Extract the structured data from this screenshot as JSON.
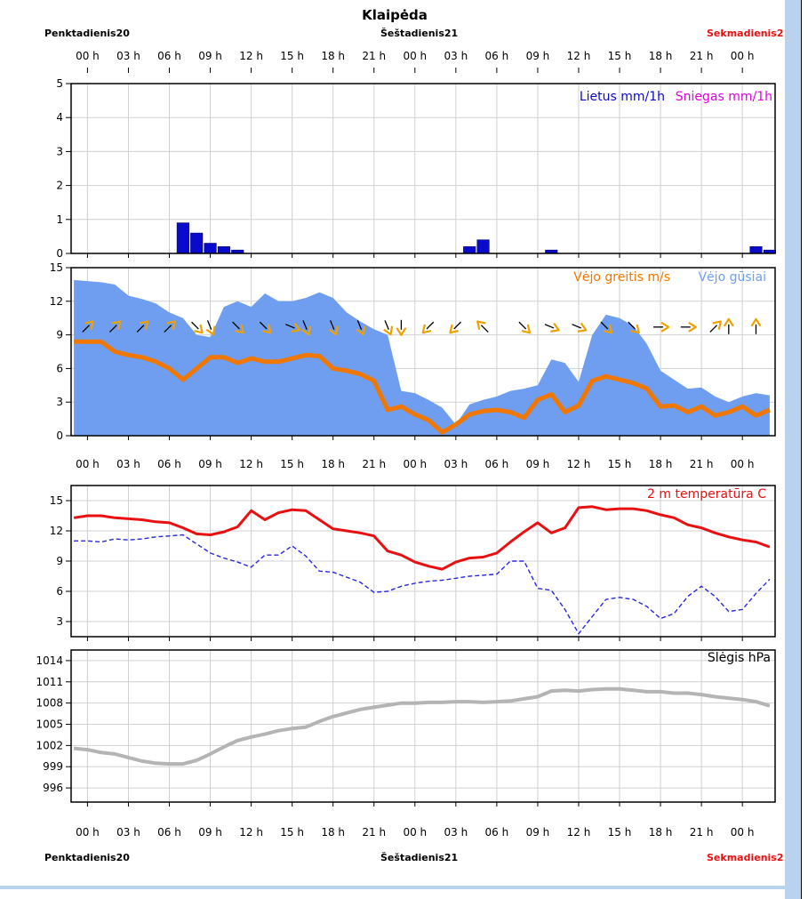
{
  "header": {
    "city": "Klaipėda",
    "day_left": "Penktadienis20",
    "day_mid": "Šeštadienis21",
    "day_right": "Sekmadienis2"
  },
  "colors": {
    "rain": "#0a0acd",
    "snow": "#e000e0",
    "wind": "#f07800",
    "gust": "#6f9ef0",
    "arrow": "#f0a000",
    "temp": "#e81010",
    "dew": "#2828e0",
    "pressure": "#b4b4b4",
    "weekend": "#e81010"
  },
  "hour_labels": [
    "00 h",
    "03 h",
    "06 h",
    "09 h",
    "12 h",
    "15 h",
    "18 h",
    "21 h",
    "00 h",
    "03 h",
    "06 h",
    "09 h",
    "12 h",
    "15 h",
    "18 h",
    "21 h",
    "00 h"
  ],
  "chart_data": [
    {
      "type": "bar",
      "x_start_hour": 0,
      "legend": [
        "Lietus mm/1h",
        "Sniegas mm/1h"
      ],
      "ylim": [
        0,
        5
      ],
      "yticks": [
        0,
        1,
        2,
        3,
        4,
        5
      ],
      "rain": [
        {
          "h": 7,
          "v": 0.9
        },
        {
          "h": 8,
          "v": 0.6
        },
        {
          "h": 9,
          "v": 0.3
        },
        {
          "h": 10,
          "v": 0.2
        },
        {
          "h": 11,
          "v": 0.1
        },
        {
          "h": 28,
          "v": 0.2
        },
        {
          "h": 29,
          "v": 0.4
        },
        {
          "h": 34,
          "v": 0.1
        },
        {
          "h": 49,
          "v": 0.2
        },
        {
          "h": 50,
          "v": 0.1
        }
      ],
      "snow": []
    },
    {
      "type": "area",
      "legend": [
        "Vėjo greitis m/s",
        "Vėjo gūsiai"
      ],
      "ylim": [
        0,
        15
      ],
      "yticks": [
        0,
        3,
        6,
        9,
        12,
        15
      ],
      "x": [
        -1,
        0,
        1,
        2,
        3,
        4,
        5,
        6,
        7,
        8,
        9,
        10,
        11,
        12,
        13,
        14,
        15,
        16,
        17,
        18,
        19,
        20,
        21,
        22,
        23,
        24,
        25,
        26,
        27,
        28,
        29,
        30,
        31,
        32,
        33,
        34,
        35,
        36,
        37,
        38,
        39,
        40,
        41,
        42,
        43,
        44,
        45,
        46,
        47,
        48,
        49,
        50
      ],
      "gusts": [
        13.9,
        13.8,
        13.7,
        13.5,
        12.5,
        12.2,
        11.8,
        11.0,
        10.5,
        9.0,
        8.8,
        11.5,
        12.0,
        11.5,
        12.7,
        12.0,
        12.0,
        12.3,
        12.8,
        12.3,
        11.0,
        10.2,
        9.5,
        9.0,
        4.0,
        3.8,
        3.2,
        2.5,
        1.0,
        2.8,
        3.2,
        3.5,
        4.0,
        4.2,
        4.5,
        6.8,
        6.5,
        4.8,
        9.0,
        10.8,
        10.5,
        9.8,
        8.2,
        5.8,
        5.0,
        4.2,
        4.3,
        3.5,
        3.0,
        3.5,
        3.8,
        3.6
      ],
      "speed": [
        8.4,
        8.4,
        8.4,
        7.5,
        7.2,
        7.0,
        6.6,
        6.0,
        5.0,
        6.0,
        7.0,
        7.0,
        6.5,
        6.9,
        6.6,
        6.6,
        6.9,
        7.2,
        7.1,
        6.0,
        5.8,
        5.5,
        4.9,
        2.3,
        2.6,
        1.9,
        1.4,
        0.3,
        1.0,
        1.9,
        2.2,
        2.3,
        2.1,
        1.6,
        3.2,
        3.7,
        2.1,
        2.7,
        4.9,
        5.3,
        5.0,
        4.7,
        4.2,
        2.6,
        2.7,
        2.1,
        2.6,
        1.8,
        2.1,
        2.6,
        1.8,
        2.3
      ],
      "arrows": [
        {
          "h": 0,
          "dir": "NE"
        },
        {
          "h": 2,
          "dir": "NE"
        },
        {
          "h": 4,
          "dir": "NE"
        },
        {
          "h": 6,
          "dir": "NE"
        },
        {
          "h": 8,
          "dir": "SE"
        },
        {
          "h": 9,
          "dir": "SSE"
        },
        {
          "h": 11,
          "dir": "SE"
        },
        {
          "h": 13,
          "dir": "SE"
        },
        {
          "h": 15,
          "dir": "ESE"
        },
        {
          "h": 16,
          "dir": "SSE"
        },
        {
          "h": 18,
          "dir": "SSE"
        },
        {
          "h": 20,
          "dir": "SSE"
        },
        {
          "h": 22,
          "dir": "SSE"
        },
        {
          "h": 23,
          "dir": "S"
        },
        {
          "h": 25,
          "dir": "SW"
        },
        {
          "h": 27,
          "dir": "SW"
        },
        {
          "h": 29,
          "dir": "NW"
        },
        {
          "h": 32,
          "dir": "SE"
        },
        {
          "h": 34,
          "dir": "ESE"
        },
        {
          "h": 36,
          "dir": "ESE"
        },
        {
          "h": 38,
          "dir": "SE"
        },
        {
          "h": 40,
          "dir": "SE"
        },
        {
          "h": 42,
          "dir": "E"
        },
        {
          "h": 44,
          "dir": "E"
        },
        {
          "h": 46,
          "dir": "NE"
        },
        {
          "h": 47,
          "dir": "N"
        },
        {
          "h": 49,
          "dir": "N"
        }
      ]
    },
    {
      "type": "line",
      "legend": [
        "2 m temperatūra C"
      ],
      "ylim": [
        1.5,
        16.5
      ],
      "yticks": [
        3,
        6,
        9,
        12,
        15
      ],
      "x": [
        -1,
        0,
        1,
        2,
        3,
        4,
        5,
        6,
        7,
        8,
        9,
        10,
        11,
        12,
        13,
        14,
        15,
        16,
        17,
        18,
        19,
        20,
        21,
        22,
        23,
        24,
        25,
        26,
        27,
        28,
        29,
        30,
        31,
        32,
        33,
        34,
        35,
        36,
        37,
        38,
        39,
        40,
        41,
        42,
        43,
        44,
        45,
        46,
        47,
        48,
        49,
        50
      ],
      "temp": [
        13.3,
        13.5,
        13.5,
        13.3,
        13.2,
        13.1,
        12.9,
        12.8,
        12.3,
        11.7,
        11.6,
        11.9,
        12.4,
        14.0,
        13.1,
        13.8,
        14.1,
        14.0,
        13.1,
        12.2,
        12.0,
        11.8,
        11.5,
        10.0,
        9.6,
        8.9,
        8.5,
        8.2,
        8.9,
        9.3,
        9.4,
        9.8,
        10.9,
        11.9,
        12.8,
        11.8,
        12.3,
        14.3,
        14.4,
        14.1,
        14.2,
        14.2,
        14.0,
        13.6,
        13.3,
        12.6,
        12.3,
        11.8,
        11.4,
        11.1,
        10.9,
        10.4
      ],
      "dew": [
        11.0,
        11.0,
        10.9,
        11.2,
        11.1,
        11.2,
        11.4,
        11.5,
        11.6,
        10.7,
        9.8,
        9.3,
        8.9,
        8.4,
        9.6,
        9.6,
        10.5,
        9.5,
        8.0,
        7.9,
        7.4,
        6.9,
        5.9,
        6.0,
        6.5,
        6.8,
        7.0,
        7.1,
        7.3,
        7.5,
        7.6,
        7.7,
        9.0,
        9.0,
        6.3,
        6.1,
        4.2,
        1.8,
        3.5,
        5.2,
        5.4,
        5.2,
        4.5,
        3.3,
        3.8,
        5.5,
        6.5,
        5.5,
        4.0,
        4.2,
        5.8,
        7.2
      ]
    },
    {
      "type": "line",
      "legend": [
        "Slėgis hPa"
      ],
      "ylim": [
        994,
        1015.5
      ],
      "yticks": [
        996,
        999,
        1002,
        1005,
        1008,
        1011,
        1014
      ],
      "x": [
        -1,
        0,
        1,
        2,
        3,
        4,
        5,
        6,
        7,
        8,
        9,
        10,
        11,
        12,
        13,
        14,
        15,
        16,
        17,
        18,
        19,
        20,
        21,
        22,
        23,
        24,
        25,
        26,
        27,
        28,
        29,
        30,
        31,
        32,
        33,
        34,
        35,
        36,
        37,
        38,
        39,
        40,
        41,
        42,
        43,
        44,
        45,
        46,
        47,
        48,
        49,
        50
      ],
      "pressure": [
        1001.6,
        1001.4,
        1001.0,
        1000.8,
        1000.3,
        999.8,
        999.5,
        999.4,
        999.4,
        999.9,
        1000.8,
        1001.8,
        1002.7,
        1003.2,
        1003.6,
        1004.1,
        1004.4,
        1004.6,
        1005.4,
        1006.1,
        1006.6,
        1007.1,
        1007.4,
        1007.7,
        1008.0,
        1008.0,
        1008.1,
        1008.1,
        1008.2,
        1008.2,
        1008.1,
        1008.2,
        1008.3,
        1008.6,
        1008.9,
        1009.7,
        1009.8,
        1009.7,
        1009.9,
        1010.0,
        1010.0,
        1009.8,
        1009.6,
        1009.6,
        1009.4,
        1009.4,
        1009.2,
        1008.9,
        1008.7,
        1008.5,
        1008.2,
        1007.6
      ]
    }
  ]
}
